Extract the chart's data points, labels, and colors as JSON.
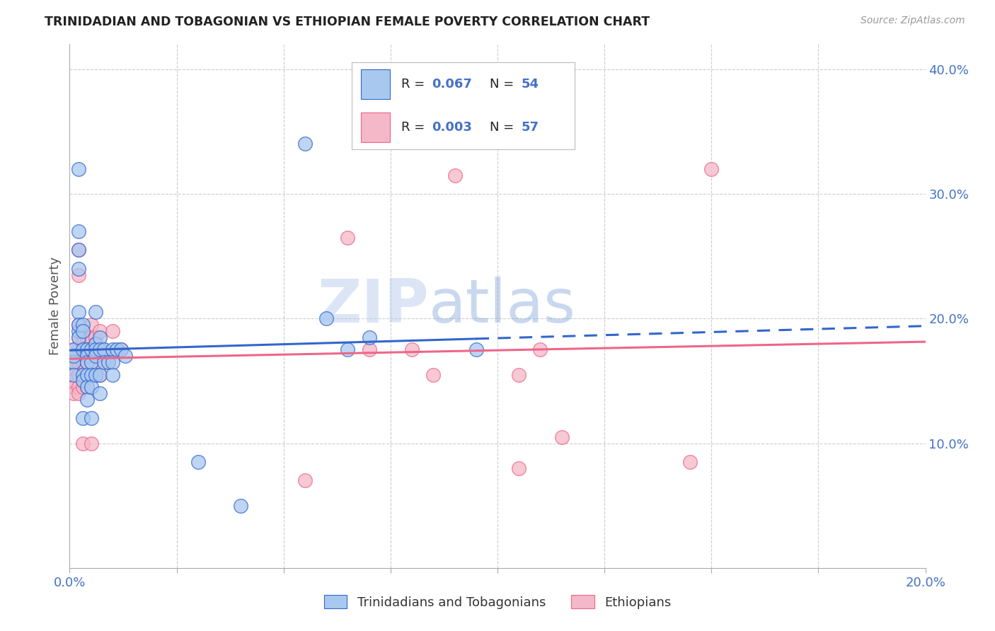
{
  "title": "TRINIDADIAN AND TOBAGONIAN VS ETHIOPIAN FEMALE POVERTY CORRELATION CHART",
  "source": "Source: ZipAtlas.com",
  "ylabel": "Female Poverty",
  "xlim": [
    0.0,
    0.2
  ],
  "ylim": [
    0.0,
    0.42
  ],
  "legend_blue_r": "0.067",
  "legend_blue_n": "54",
  "legend_pink_r": "0.003",
  "legend_pink_n": "57",
  "legend_bottom_blue": "Trinidadians and Tobagonians",
  "legend_bottom_pink": "Ethiopians",
  "blue_color": "#A8C8F0",
  "pink_color": "#F4B8C8",
  "trend_blue_color": "#3366CC",
  "trend_pink_color": "#EE6688",
  "label_color": "#4472C4",
  "watermark_color": "#C8D8EE",
  "blue_points": [
    [
      0.001,
      0.175
    ],
    [
      0.001,
      0.165
    ],
    [
      0.001,
      0.17
    ],
    [
      0.001,
      0.155
    ],
    [
      0.002,
      0.19
    ],
    [
      0.002,
      0.185
    ],
    [
      0.002,
      0.32
    ],
    [
      0.002,
      0.27
    ],
    [
      0.002,
      0.255
    ],
    [
      0.002,
      0.24
    ],
    [
      0.002,
      0.205
    ],
    [
      0.002,
      0.195
    ],
    [
      0.003,
      0.195
    ],
    [
      0.003,
      0.19
    ],
    [
      0.003,
      0.175
    ],
    [
      0.003,
      0.155
    ],
    [
      0.003,
      0.15
    ],
    [
      0.003,
      0.12
    ],
    [
      0.004,
      0.175
    ],
    [
      0.004,
      0.17
    ],
    [
      0.004,
      0.165
    ],
    [
      0.004,
      0.155
    ],
    [
      0.004,
      0.145
    ],
    [
      0.004,
      0.135
    ],
    [
      0.005,
      0.175
    ],
    [
      0.005,
      0.165
    ],
    [
      0.005,
      0.155
    ],
    [
      0.005,
      0.145
    ],
    [
      0.005,
      0.12
    ],
    [
      0.006,
      0.205
    ],
    [
      0.006,
      0.18
    ],
    [
      0.006,
      0.175
    ],
    [
      0.006,
      0.17
    ],
    [
      0.006,
      0.155
    ],
    [
      0.007,
      0.185
    ],
    [
      0.007,
      0.175
    ],
    [
      0.007,
      0.155
    ],
    [
      0.007,
      0.14
    ],
    [
      0.008,
      0.175
    ],
    [
      0.008,
      0.165
    ],
    [
      0.009,
      0.165
    ],
    [
      0.01,
      0.175
    ],
    [
      0.01,
      0.165
    ],
    [
      0.01,
      0.155
    ],
    [
      0.011,
      0.175
    ],
    [
      0.012,
      0.175
    ],
    [
      0.013,
      0.17
    ],
    [
      0.055,
      0.34
    ],
    [
      0.06,
      0.2
    ],
    [
      0.065,
      0.175
    ],
    [
      0.07,
      0.185
    ],
    [
      0.095,
      0.175
    ],
    [
      0.04,
      0.05
    ],
    [
      0.03,
      0.085
    ]
  ],
  "pink_points": [
    [
      0.001,
      0.175
    ],
    [
      0.001,
      0.165
    ],
    [
      0.001,
      0.16
    ],
    [
      0.001,
      0.155
    ],
    [
      0.001,
      0.15
    ],
    [
      0.001,
      0.145
    ],
    [
      0.001,
      0.14
    ],
    [
      0.002,
      0.255
    ],
    [
      0.002,
      0.235
    ],
    [
      0.002,
      0.195
    ],
    [
      0.002,
      0.185
    ],
    [
      0.002,
      0.175
    ],
    [
      0.002,
      0.165
    ],
    [
      0.002,
      0.155
    ],
    [
      0.002,
      0.145
    ],
    [
      0.002,
      0.14
    ],
    [
      0.003,
      0.185
    ],
    [
      0.003,
      0.18
    ],
    [
      0.003,
      0.175
    ],
    [
      0.003,
      0.165
    ],
    [
      0.003,
      0.155
    ],
    [
      0.003,
      0.145
    ],
    [
      0.003,
      0.1
    ],
    [
      0.004,
      0.185
    ],
    [
      0.004,
      0.175
    ],
    [
      0.004,
      0.165
    ],
    [
      0.004,
      0.155
    ],
    [
      0.004,
      0.145
    ],
    [
      0.005,
      0.195
    ],
    [
      0.005,
      0.185
    ],
    [
      0.005,
      0.175
    ],
    [
      0.005,
      0.165
    ],
    [
      0.005,
      0.155
    ],
    [
      0.005,
      0.1
    ],
    [
      0.006,
      0.185
    ],
    [
      0.006,
      0.18
    ],
    [
      0.006,
      0.175
    ],
    [
      0.006,
      0.165
    ],
    [
      0.007,
      0.19
    ],
    [
      0.007,
      0.175
    ],
    [
      0.007,
      0.155
    ],
    [
      0.008,
      0.175
    ],
    [
      0.009,
      0.165
    ],
    [
      0.01,
      0.19
    ],
    [
      0.012,
      0.175
    ],
    [
      0.065,
      0.265
    ],
    [
      0.07,
      0.175
    ],
    [
      0.08,
      0.175
    ],
    [
      0.085,
      0.155
    ],
    [
      0.09,
      0.315
    ],
    [
      0.105,
      0.155
    ],
    [
      0.105,
      0.08
    ],
    [
      0.11,
      0.175
    ],
    [
      0.115,
      0.105
    ],
    [
      0.145,
      0.085
    ],
    [
      0.15,
      0.32
    ],
    [
      0.055,
      0.07
    ]
  ]
}
